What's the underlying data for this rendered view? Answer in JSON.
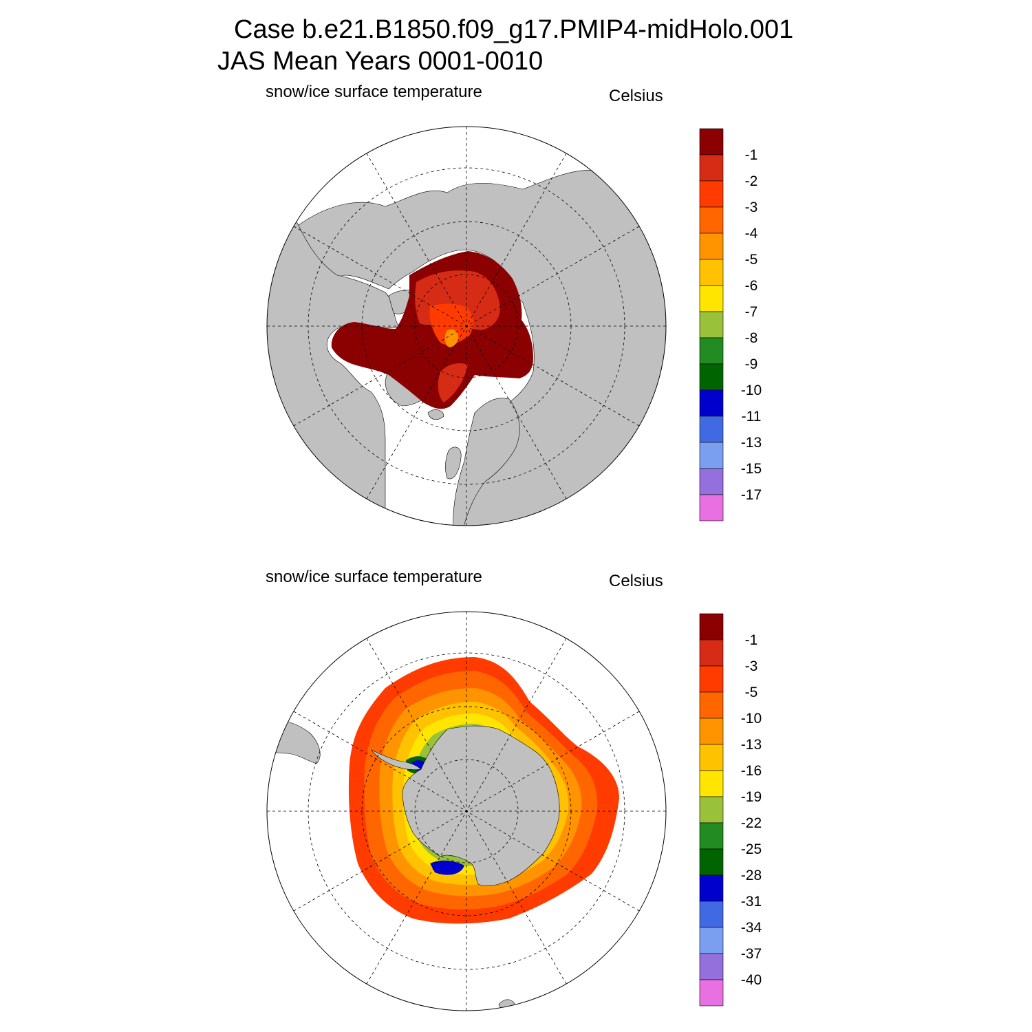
{
  "title": {
    "line1": "Case b.e21.B1850.f09_g17.PMIP4-midHolo.001",
    "line2": "JAS Mean   Years 0001-0010"
  },
  "colors": {
    "land": "#c0c0c0",
    "ocean": "#ffffff"
  },
  "panels": [
    {
      "id": "north",
      "variable": "snow/ice surface temperature",
      "units": "Celsius",
      "hemisphere": "Northern",
      "colorbar": {
        "labels": [
          "-1",
          "-2",
          "-3",
          "-4",
          "-5",
          "-6",
          "-7",
          "-8",
          "-9",
          "-10",
          "-11",
          "-13",
          "-15",
          "-17"
        ],
        "colors": [
          "#8b0000",
          "#d62b14",
          "#ff3b00",
          "#ff6600",
          "#ff9400",
          "#ffc200",
          "#ffe500",
          "#99c13a",
          "#228b22",
          "#006400",
          "#0000cd",
          "#4169e1",
          "#7b9ff0",
          "#9370db",
          "#e870e0"
        ]
      }
    },
    {
      "id": "south",
      "variable": "snow/ice surface temperature",
      "units": "Celsius",
      "hemisphere": "Southern",
      "colorbar": {
        "labels": [
          "-1",
          "-3",
          "-5",
          "-10",
          "-13",
          "-16",
          "-19",
          "-22",
          "-25",
          "-28",
          "-31",
          "-34",
          "-37",
          "-40"
        ],
        "colors": [
          "#8b0000",
          "#d62b14",
          "#ff3b00",
          "#ff6600",
          "#ff9400",
          "#ffc200",
          "#ffe500",
          "#99c13a",
          "#228b22",
          "#006400",
          "#0000cd",
          "#4169e1",
          "#7b9ff0",
          "#9370db",
          "#e870e0"
        ]
      }
    }
  ]
}
